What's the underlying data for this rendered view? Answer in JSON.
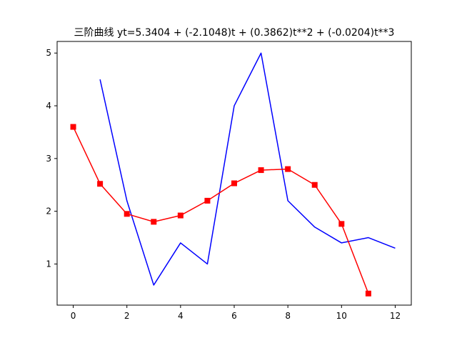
{
  "chart_data": {
    "type": "line",
    "title": "三阶曲线 yt=5.3404 + (-2.1048)t + (0.3862)t**2 + (-0.0204)t**3",
    "xlabel": "",
    "ylabel": "",
    "xlim": [
      -0.6,
      12.6
    ],
    "ylim": [
      0.22,
      5.22
    ],
    "xticks": [
      0,
      2,
      4,
      6,
      8,
      10,
      12
    ],
    "yticks": [
      1,
      2,
      3,
      4,
      5
    ],
    "grid": false,
    "legend": "none",
    "series": [
      {
        "color": "#0000ff",
        "marker": "none",
        "x": [
          1,
          2,
          3,
          4,
          5,
          6,
          7,
          8,
          9,
          10,
          11,
          12
        ],
        "values": [
          4.5,
          2.2,
          0.6,
          1.4,
          1.0,
          4.0,
          5.0,
          2.2,
          1.7,
          1.4,
          1.5,
          1.3
        ]
      },
      {
        "color": "#ff0000",
        "marker": "square",
        "x": [
          0,
          1,
          2,
          3,
          4,
          5,
          6,
          7,
          8,
          9,
          10,
          11
        ],
        "values": [
          3.6,
          2.52,
          1.95,
          1.8,
          1.92,
          2.2,
          2.53,
          2.78,
          2.8,
          2.5,
          1.76,
          0.44
        ]
      }
    ]
  }
}
